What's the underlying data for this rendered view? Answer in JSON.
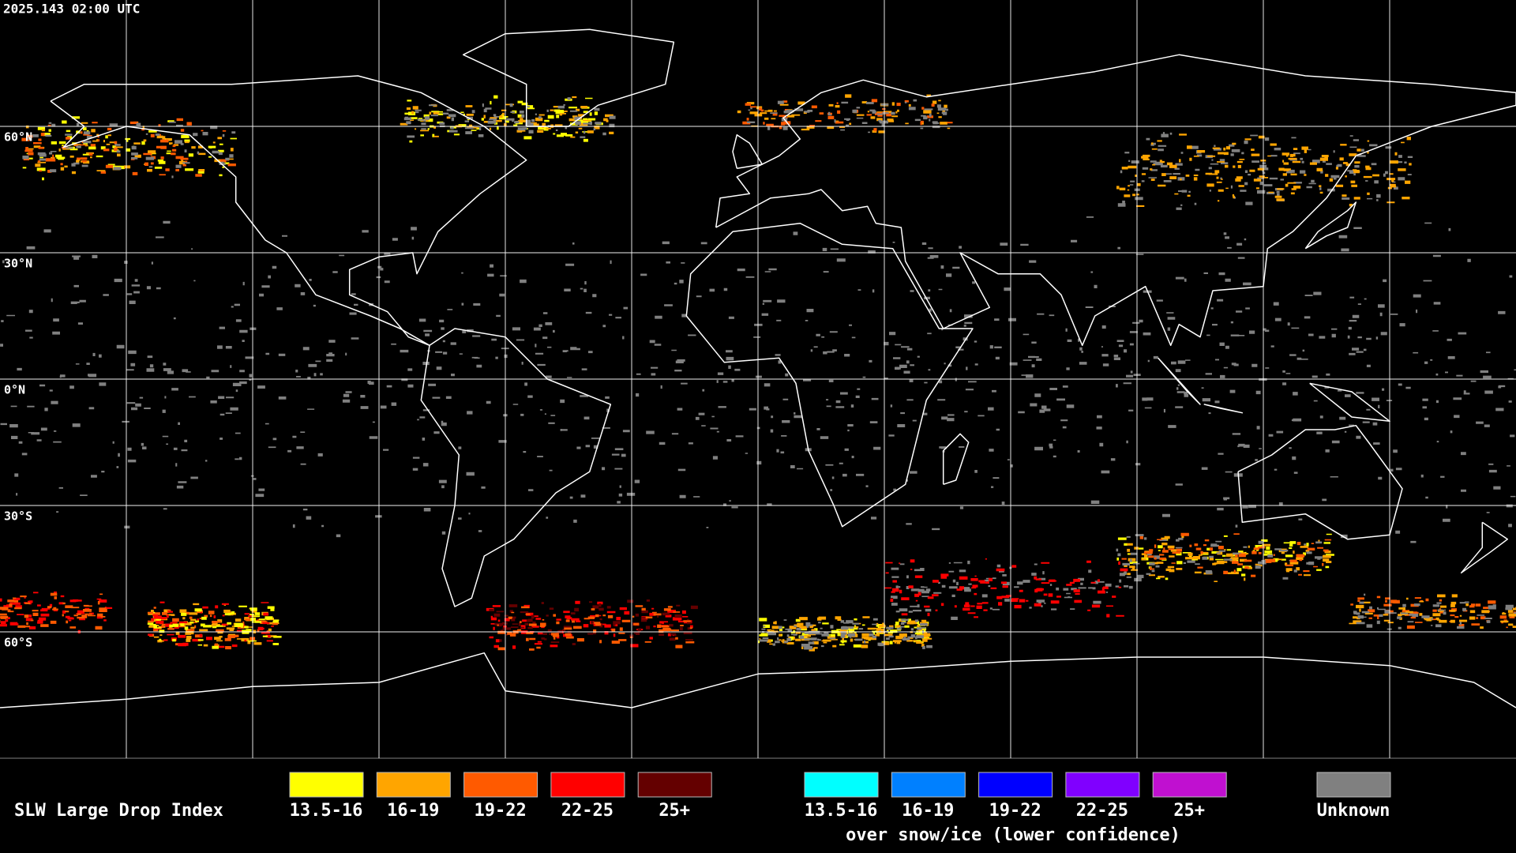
{
  "header": {
    "timestamp": "2025.143 02:00 UTC"
  },
  "map": {
    "latitude_labels": [
      "60°N",
      "30°N",
      "0°N",
      "30°S",
      "60°S"
    ]
  },
  "legend": {
    "title": "SLW Large Drop Index",
    "groups": [
      {
        "items": [
          {
            "label": "13.5-16",
            "color": "#ffff00"
          },
          {
            "label": "16-19",
            "color": "#ffa500"
          },
          {
            "label": "19-22",
            "color": "#ff5a00"
          },
          {
            "label": "22-25",
            "color": "#ff0000"
          },
          {
            "label": "25+",
            "color": "#640000"
          }
        ]
      },
      {
        "items": [
          {
            "label": "13.5-16",
            "color": "#00ffff"
          },
          {
            "label": "16-19",
            "color": "#0080ff"
          },
          {
            "label": "19-22",
            "color": "#0000ff"
          },
          {
            "label": "22-25",
            "color": "#8000ff"
          },
          {
            "label": "25+",
            "color": "#c010d0"
          }
        ],
        "caption": "over snow/ice (lower confidence)"
      },
      {
        "items": [
          {
            "label": "Unknown",
            "color": "#808080"
          }
        ]
      }
    ]
  }
}
